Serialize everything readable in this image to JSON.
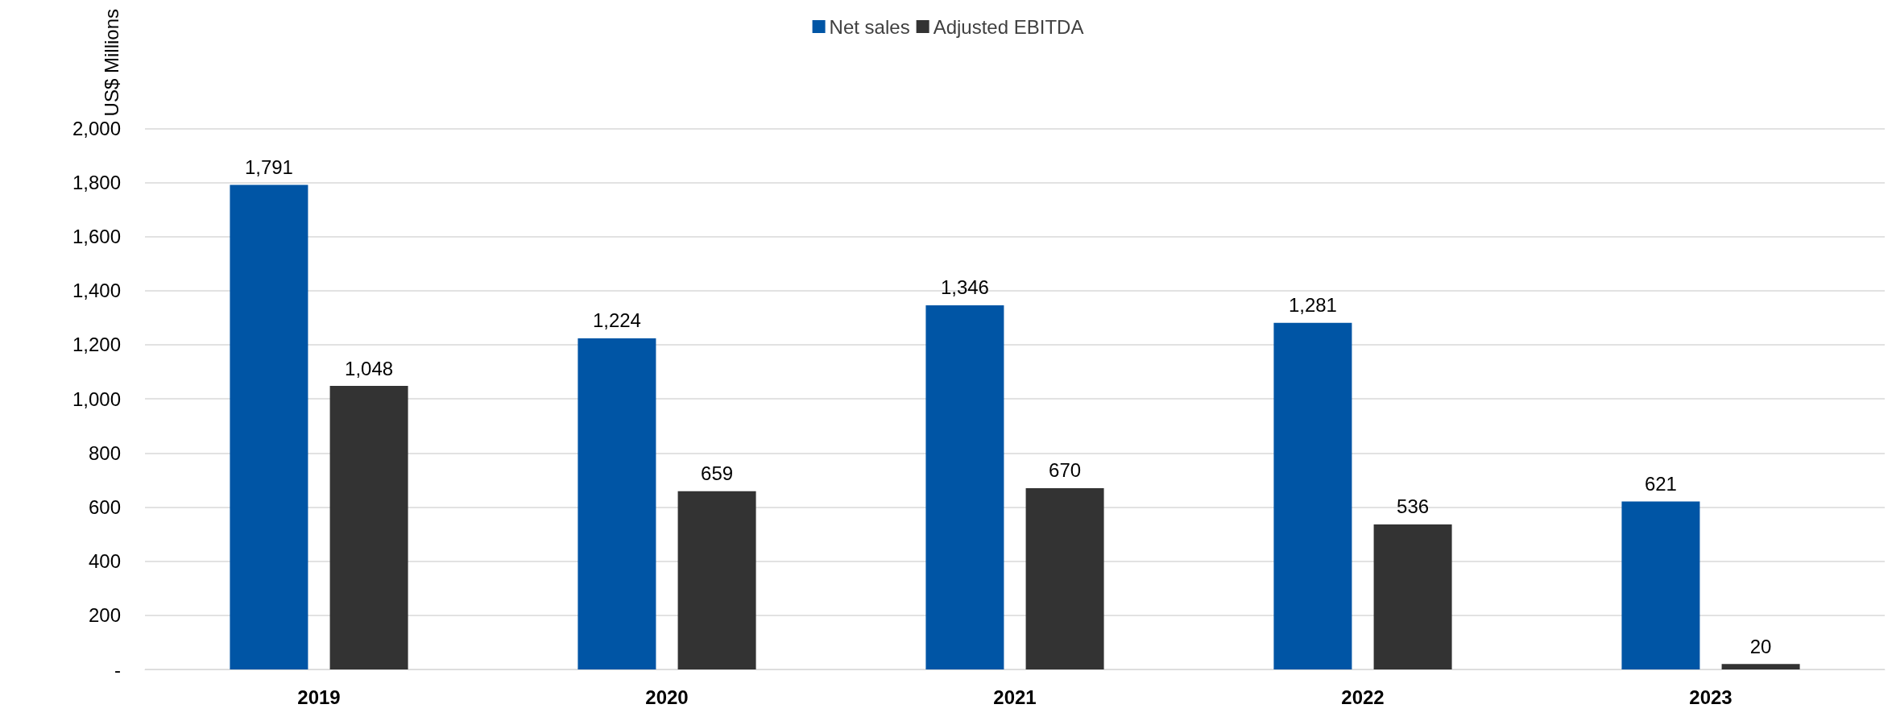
{
  "chart_data": {
    "type": "bar",
    "ylabel": "US$ Millions",
    "categories": [
      "2019",
      "2020",
      "2021",
      "2022",
      "2023"
    ],
    "series": [
      {
        "name": "Net sales",
        "color": "#0055a5",
        "values": [
          1791,
          1224,
          1346,
          1281,
          621
        ],
        "value_labels": [
          "1,791",
          "1,224",
          "1,346",
          "1,281",
          "621"
        ]
      },
      {
        "name": "Adjusted EBITDA",
        "color": "#333333",
        "values": [
          1048,
          659,
          670,
          536,
          20
        ],
        "value_labels": [
          "1,048",
          "659",
          "670",
          "536",
          "20"
        ]
      }
    ],
    "ylim": [
      0,
      2000
    ],
    "yticks": [
      {
        "value": 0,
        "label": "-"
      },
      200,
      400,
      600,
      800,
      {
        "value": 1000,
        "label": "1,000"
      },
      {
        "value": 1200,
        "label": "1,200"
      },
      {
        "value": 1400,
        "label": "1,400"
      },
      {
        "value": 1600,
        "label": "1,600"
      },
      {
        "value": 1800,
        "label": "1,800"
      },
      {
        "value": 2000,
        "label": "2,000"
      }
    ],
    "grid": "y",
    "legend": "top"
  }
}
